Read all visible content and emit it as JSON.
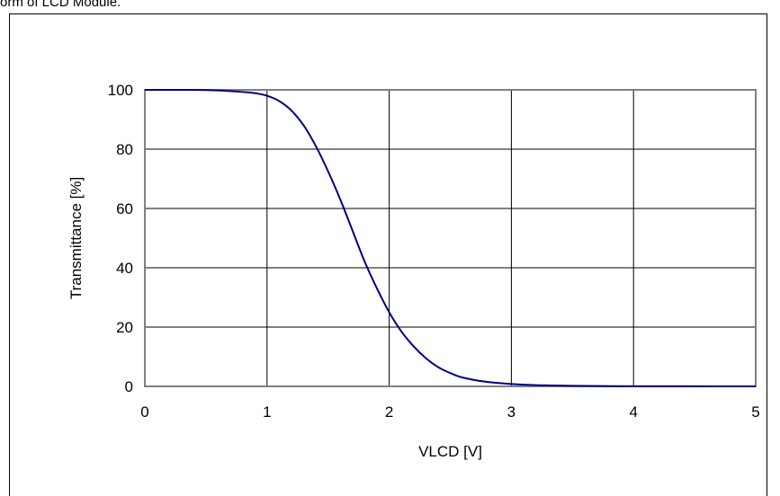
{
  "caption": "orm of LCD Module.",
  "chart_data": {
    "type": "line",
    "xlabel": "VLCD [V]",
    "ylabel": "Transmittance [%]",
    "xlim": [
      0,
      5
    ],
    "ylim": [
      0,
      100
    ],
    "x_ticks": [
      "0",
      "1",
      "2",
      "3",
      "4",
      "5"
    ],
    "y_ticks": [
      "0",
      "20",
      "40",
      "60",
      "80",
      "100"
    ],
    "grid": true,
    "line_color": "#000080",
    "grid_color": "#000000",
    "plot_border_color": "#808080",
    "series": [
      {
        "x": [
          0,
          0.2,
          0.4,
          0.6,
          0.8,
          0.9,
          1.0,
          1.1,
          1.2,
          1.3,
          1.4,
          1.5,
          1.6,
          1.7,
          1.8,
          1.9,
          2.0,
          2.1,
          2.2,
          2.3,
          2.4,
          2.5,
          2.6,
          2.8,
          3.0,
          3.2,
          3.5,
          4.0,
          4.5,
          5.0
        ],
        "y": [
          100,
          100,
          100,
          99.8,
          99.3,
          98.9,
          98.0,
          96.2,
          93.0,
          88.0,
          81.0,
          72.5,
          63.0,
          52.5,
          42.0,
          33.0,
          25.0,
          18.5,
          13.5,
          9.5,
          6.5,
          4.5,
          3.0,
          1.5,
          0.8,
          0.4,
          0.2,
          0.05,
          0.02,
          0
        ]
      }
    ]
  }
}
